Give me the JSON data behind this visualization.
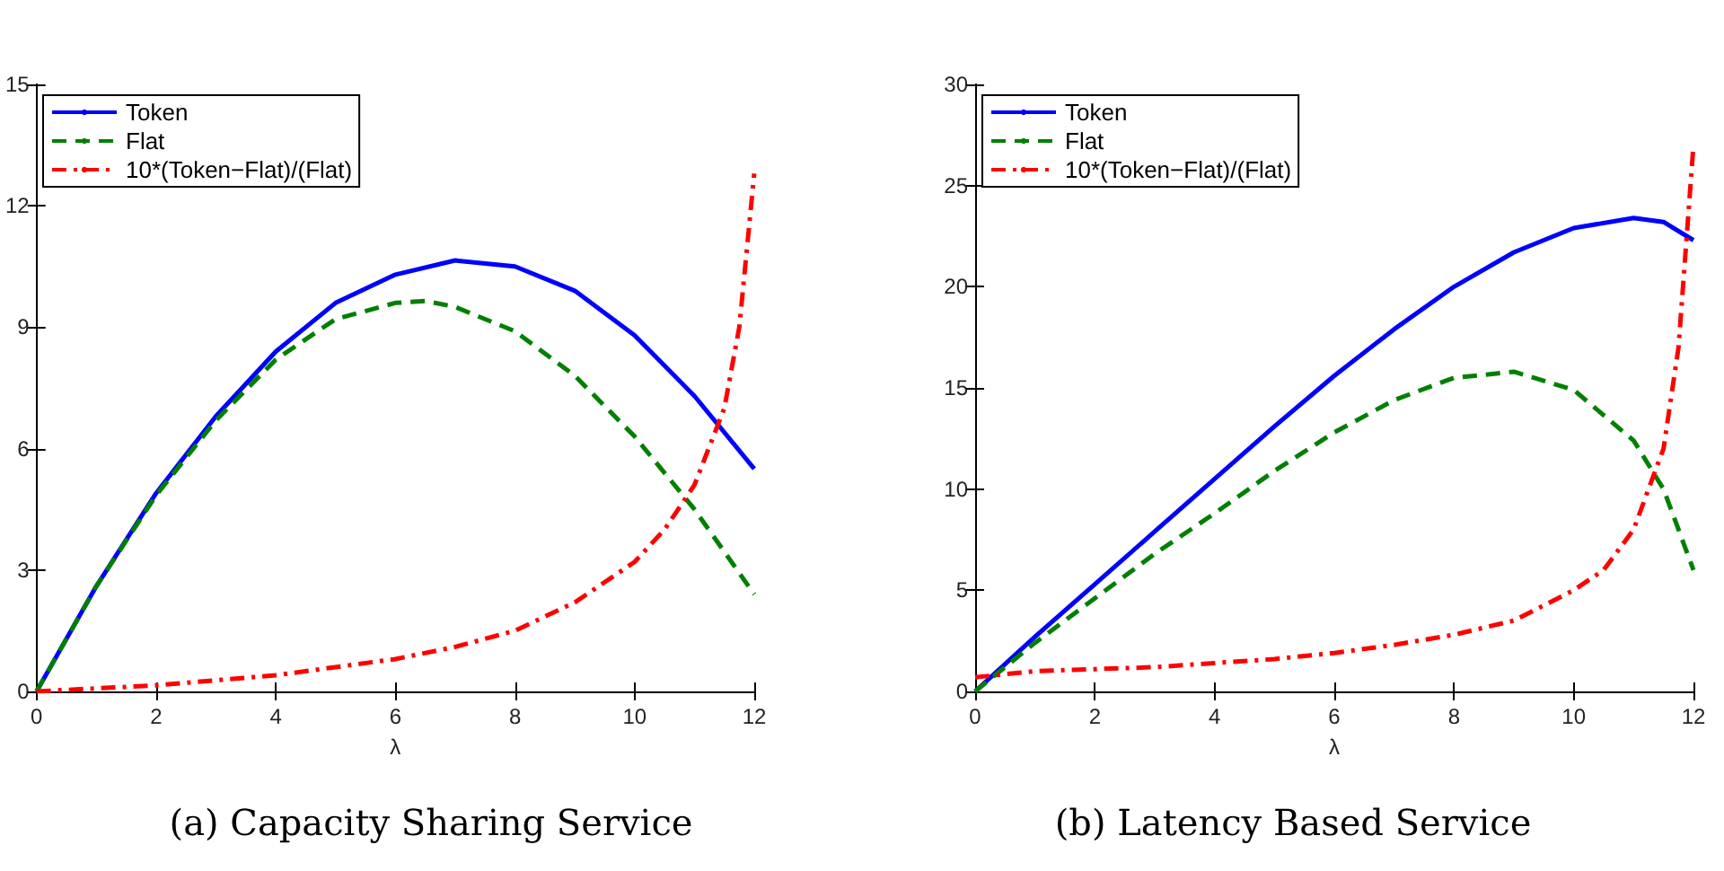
{
  "chart_data": [
    {
      "type": "line",
      "title": "(a) Capacity Sharing Service",
      "xlabel": "λ",
      "xlim": [
        0,
        12
      ],
      "xticks": [
        0,
        2,
        4,
        6,
        8,
        10,
        12
      ],
      "ylim": [
        0,
        15
      ],
      "yticks": [
        0,
        3,
        6,
        9,
        12,
        15
      ],
      "legend": "top left",
      "grid": false,
      "marker": "none",
      "series": [
        {
          "name": "Token",
          "color": "#0000ff",
          "line_style": "solid",
          "x": [
            0,
            1,
            2,
            3,
            4,
            5,
            6,
            7,
            8,
            9,
            10,
            11,
            12
          ],
          "values": [
            0,
            2.6,
            4.9,
            6.8,
            8.4,
            9.6,
            10.3,
            10.65,
            10.5,
            9.9,
            8.8,
            7.3,
            5.5
          ]
        },
        {
          "name": "Flat",
          "color": "#008000",
          "line_style": "dashed",
          "x": [
            0,
            1,
            2,
            3,
            4,
            5,
            6,
            6.5,
            7,
            8,
            9,
            10,
            11,
            12
          ],
          "values": [
            0,
            2.6,
            4.85,
            6.7,
            8.2,
            9.2,
            9.6,
            9.65,
            9.5,
            8.9,
            7.8,
            6.3,
            4.5,
            2.4
          ]
        },
        {
          "name": "10*(Token−Flat)/(Flat)",
          "color": "#ff0000",
          "line_style": "dashdot",
          "x": [
            0,
            2,
            4,
            6,
            7,
            8,
            9,
            10,
            10.5,
            11,
            11.5,
            11.75,
            12
          ],
          "values": [
            0,
            0.15,
            0.4,
            0.8,
            1.1,
            1.5,
            2.2,
            3.2,
            4,
            5.1,
            7,
            9,
            12.8
          ]
        }
      ]
    },
    {
      "type": "line",
      "title": "(b) Latency Based Service",
      "xlabel": "λ",
      "xlim": [
        0,
        12
      ],
      "xticks": [
        0,
        2,
        4,
        6,
        8,
        10,
        12
      ],
      "ylim": [
        0,
        30
      ],
      "yticks": [
        0,
        5,
        10,
        15,
        20,
        25,
        30
      ],
      "legend": "top left",
      "grid": false,
      "marker": "none",
      "series": [
        {
          "name": "Token",
          "color": "#0000ff",
          "line_style": "solid",
          "x": [
            0,
            1,
            2,
            3,
            4,
            5,
            6,
            7,
            8,
            9,
            10,
            11,
            11.5,
            12
          ],
          "values": [
            0,
            2.7,
            5.3,
            7.9,
            10.5,
            13.1,
            15.6,
            17.9,
            20,
            21.7,
            22.9,
            23.4,
            23.2,
            22.3
          ]
        },
        {
          "name": "Flat",
          "color": "#008000",
          "line_style": "dashed",
          "x": [
            0,
            1,
            2,
            3,
            4,
            5,
            6,
            7,
            8,
            9,
            10,
            11,
            11.5,
            12
          ],
          "values": [
            0,
            2.4,
            4.6,
            6.8,
            8.8,
            10.9,
            12.8,
            14.4,
            15.5,
            15.8,
            14.9,
            12.4,
            10,
            6
          ]
        },
        {
          "name": "10*(Token−Flat)/(Flat)",
          "color": "#ff0000",
          "line_style": "dashdot",
          "x": [
            0,
            1,
            2,
            3,
            4,
            5,
            6,
            7,
            8,
            9,
            10,
            10.5,
            11,
            11.5,
            11.75,
            12
          ],
          "values": [
            0.7,
            1,
            1.1,
            1.2,
            1.4,
            1.6,
            1.9,
            2.3,
            2.8,
            3.5,
            5,
            6,
            8,
            12,
            17,
            27
          ]
        }
      ]
    }
  ]
}
